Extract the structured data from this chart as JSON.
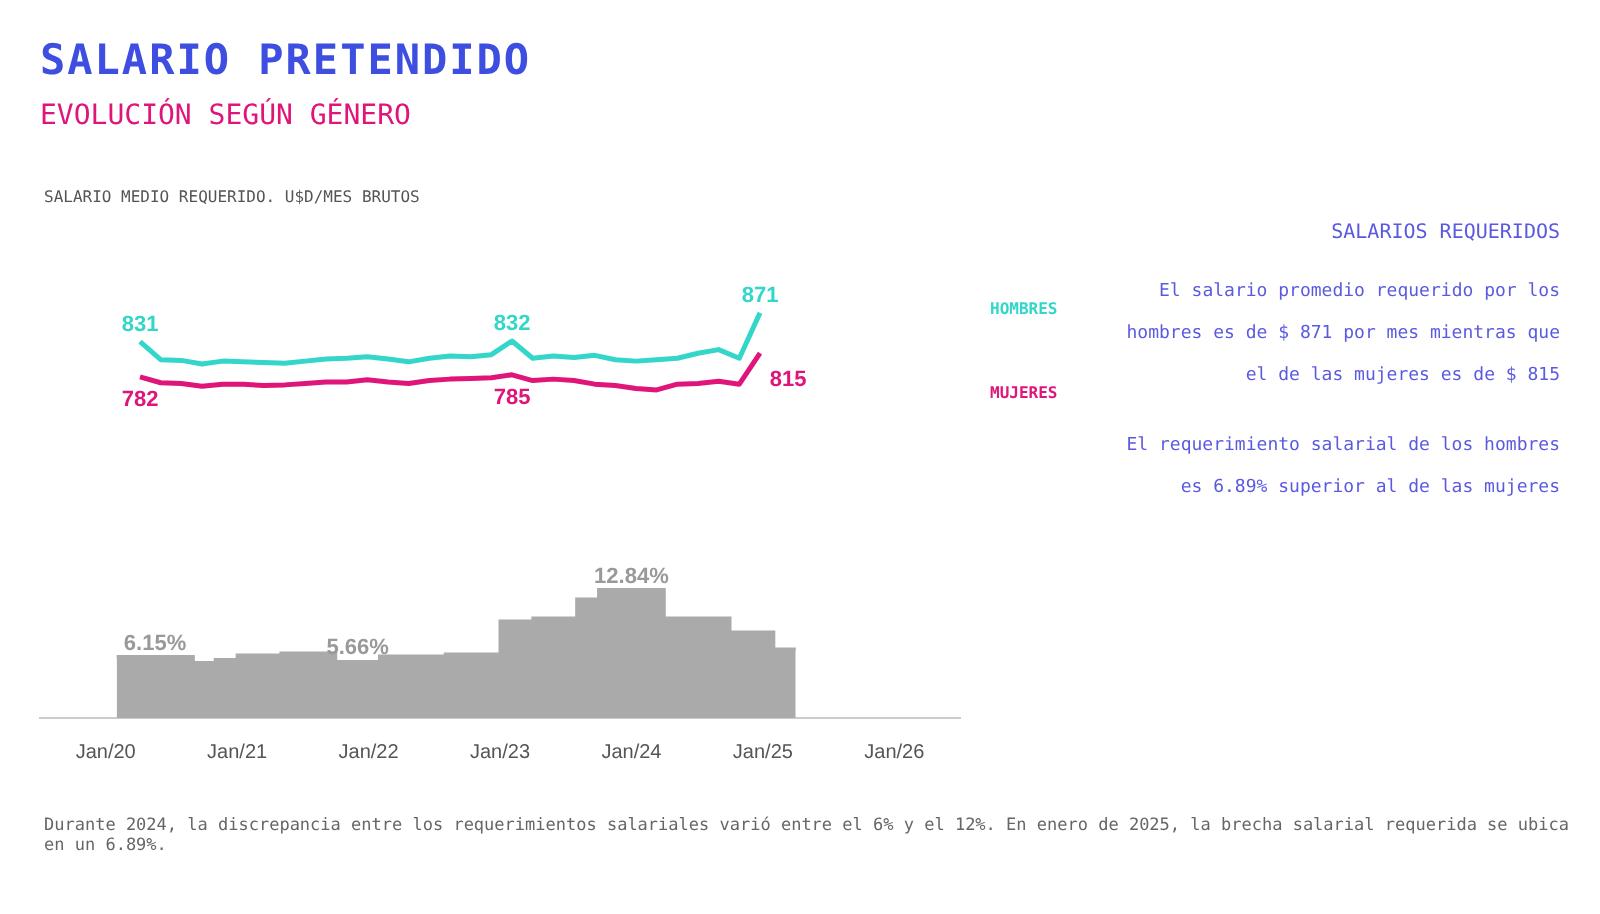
{
  "chart_data": [
    {
      "type": "line",
      "title": "SALARIO PRETENDIDO",
      "subtitle": "EVOLUCIÓN SEGÚN GÉNERO",
      "ylabel": "SALARIO MEDIO REQUERIDO. U$D/MES BRUTOS",
      "categories": [
        null,
        null,
        null,
        null,
        null,
        null,
        null,
        null,
        null,
        null,
        null,
        null,
        null,
        null,
        null,
        null,
        null,
        null,
        null,
        null,
        null,
        null,
        null,
        null,
        null,
        null,
        null,
        null,
        null,
        null,
        null
      ],
      "series": [
        {
          "name": "HOMBRES",
          "color": "#33d6c9",
          "values": [
            831,
            806,
            805,
            800,
            804,
            803,
            802,
            801,
            804,
            807,
            808,
            810,
            807,
            803,
            808,
            811,
            810,
            813,
            832,
            808,
            811,
            809,
            812,
            806,
            804,
            806,
            808,
            815,
            820,
            808,
            871
          ],
          "value_labels": [
            "831",
            null,
            null,
            null,
            null,
            null,
            null,
            null,
            null,
            null,
            null,
            null,
            null,
            null,
            null,
            null,
            null,
            null,
            "832",
            null,
            null,
            null,
            null,
            null,
            null,
            null,
            null,
            null,
            null,
            null,
            "871"
          ]
        },
        {
          "name": "MUJERES",
          "color": "#e0157a",
          "values": [
            782,
            774,
            773,
            769,
            772,
            772,
            770,
            771,
            773,
            775,
            775,
            778,
            775,
            773,
            777,
            779,
            780,
            781,
            785,
            777,
            779,
            777,
            772,
            770,
            766,
            764,
            772,
            773,
            776,
            772,
            815
          ],
          "value_labels": [
            "782",
            null,
            null,
            null,
            null,
            null,
            null,
            null,
            null,
            null,
            null,
            null,
            null,
            null,
            null,
            null,
            null,
            null,
            "785",
            null,
            null,
            null,
            null,
            null,
            null,
            null,
            null,
            null,
            null,
            null,
            "815"
          ]
        }
      ],
      "tick_labels": false,
      "grid": false,
      "legend": "right",
      "annotations": [
        "SALARIOS REQUERIDOS",
        "El salario promedio requerido por los hombres es de $ 871 por mes mientras que el de las mujeres es de $ 815",
        "El requerimiento salarial de los hombres es 6.89% superior al de las mujeres"
      ]
    },
    {
      "type": "area",
      "x": [
        "2020-02",
        "2020-09",
        "2020-09",
        "2020-11",
        "2020-11",
        "2021-01",
        "2021-01",
        "2021-05",
        "2021-05",
        "2021-10",
        "2021-10",
        "2022-02",
        "2022-02",
        "2022-08",
        "2022-08",
        "2023-01",
        "2023-01",
        "2023-04",
        "2023-04",
        "2023-08",
        "2023-08",
        "2023-10",
        "2023-10",
        "2024-04",
        "2024-04",
        "2024-10",
        "2024-10",
        "2025-02",
        "2025-02",
        "2025-04"
      ],
      "values": [
        6.15,
        6.15,
        5.55,
        5.55,
        5.85,
        5.85,
        6.3,
        6.3,
        6.5,
        6.5,
        5.66,
        5.66,
        6.2,
        6.2,
        6.4,
        6.4,
        9.7,
        9.7,
        10.0,
        10.0,
        11.9,
        11.9,
        12.84,
        12.84,
        10.0,
        10.0,
        8.6,
        8.6,
        6.89,
        6.89
      ],
      "value_labels": [
        "6.15%",
        null,
        null,
        null,
        null,
        null,
        null,
        null,
        null,
        null,
        "5.66%",
        null,
        null,
        null,
        null,
        null,
        null,
        null,
        null,
        null,
        null,
        null,
        "12.84%",
        null,
        null,
        null,
        null,
        null,
        null,
        null
      ],
      "color": "#aaaaaa",
      "xlim": [
        "2019-07",
        "2026-07"
      ],
      "xticks": [
        {
          "value": "2020-01",
          "label": "Jan/20"
        },
        {
          "value": "2021-01",
          "label": "Jan/21"
        },
        {
          "value": "2022-01",
          "label": "Jan/22"
        },
        {
          "value": "2023-01",
          "label": "Jan/23"
        },
        {
          "value": "2024-01",
          "label": "Jan/24"
        },
        {
          "value": "2025-01",
          "label": "Jan/25"
        },
        {
          "value": "2026-01",
          "label": "Jan/26"
        }
      ],
      "tick_labels": "x",
      "grid": false,
      "annotations": [
        "Durante 2024, la discrepancia entre los requerimientos salariales varió entre el 6% y el 12%. En enero de 2025, la brecha salarial requerida se ubica en un 6.89%."
      ]
    }
  ]
}
